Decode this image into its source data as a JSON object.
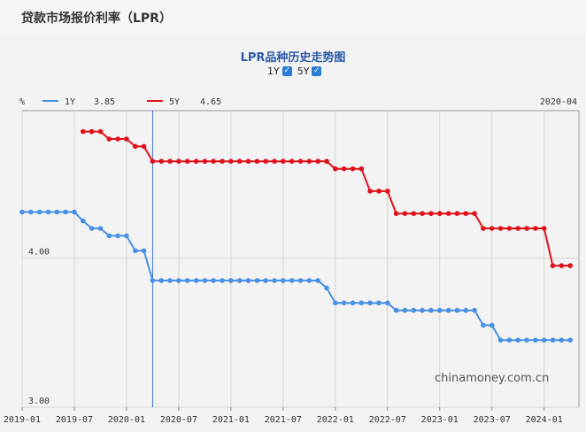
{
  "header": {
    "title": "贷款市场报价利率（LPR）"
  },
  "chart": {
    "title": "LPR品种历史走势图"
  },
  "toggles": [
    {
      "label": "1Y",
      "checked": true
    },
    {
      "label": "5Y",
      "checked": true
    }
  ],
  "check_glyph": "✓",
  "watermark": "chinamoney.com.cn",
  "chart_data": {
    "type": "line",
    "title": "LPR品种历史走势图",
    "ylabel": "%",
    "ylim": [
      3.0,
      4.99
    ],
    "xlim": [
      "2019-01",
      "2024-05"
    ],
    "y_ticks": [
      "4.00",
      "3.00"
    ],
    "x_ticks": [
      "2019-01",
      "2019-07",
      "2020-01",
      "2020-07",
      "2021-01",
      "2021-07",
      "2022-01",
      "2022-07",
      "2023-01",
      "2023-07",
      "2024-01"
    ],
    "crosshair": {
      "date": "2020-04",
      "label": "2020-04"
    },
    "grid": true,
    "legend": {
      "position": "top-left",
      "items": [
        {
          "name": "1Y",
          "value": "3.85",
          "color": "#4a90e2"
        },
        {
          "name": "5Y",
          "value": "4.65",
          "color": "#e0101a"
        }
      ]
    },
    "series": [
      {
        "name": "1Y",
        "color": "#4a90e2",
        "points": [
          [
            "2019-01",
            4.31
          ],
          [
            "2019-02",
            4.31
          ],
          [
            "2019-03",
            4.31
          ],
          [
            "2019-04",
            4.31
          ],
          [
            "2019-05",
            4.31
          ],
          [
            "2019-06",
            4.31
          ],
          [
            "2019-07",
            4.31
          ],
          [
            "2019-08",
            4.25
          ],
          [
            "2019-09",
            4.2
          ],
          [
            "2019-10",
            4.2
          ],
          [
            "2019-11",
            4.15
          ],
          [
            "2019-12",
            4.15
          ],
          [
            "2020-01",
            4.15
          ],
          [
            "2020-02",
            4.05
          ],
          [
            "2020-03",
            4.05
          ],
          [
            "2020-04",
            3.85
          ],
          [
            "2020-05",
            3.85
          ],
          [
            "2020-06",
            3.85
          ],
          [
            "2020-07",
            3.85
          ],
          [
            "2020-08",
            3.85
          ],
          [
            "2020-09",
            3.85
          ],
          [
            "2020-10",
            3.85
          ],
          [
            "2020-11",
            3.85
          ],
          [
            "2020-12",
            3.85
          ],
          [
            "2021-01",
            3.85
          ],
          [
            "2021-02",
            3.85
          ],
          [
            "2021-03",
            3.85
          ],
          [
            "2021-04",
            3.85
          ],
          [
            "2021-05",
            3.85
          ],
          [
            "2021-06",
            3.85
          ],
          [
            "2021-07",
            3.85
          ],
          [
            "2021-08",
            3.85
          ],
          [
            "2021-09",
            3.85
          ],
          [
            "2021-10",
            3.85
          ],
          [
            "2021-11",
            3.85
          ],
          [
            "2021-12",
            3.8
          ],
          [
            "2022-01",
            3.7
          ],
          [
            "2022-02",
            3.7
          ],
          [
            "2022-03",
            3.7
          ],
          [
            "2022-04",
            3.7
          ],
          [
            "2022-05",
            3.7
          ],
          [
            "2022-06",
            3.7
          ],
          [
            "2022-07",
            3.7
          ],
          [
            "2022-08",
            3.65
          ],
          [
            "2022-09",
            3.65
          ],
          [
            "2022-10",
            3.65
          ],
          [
            "2022-11",
            3.65
          ],
          [
            "2022-12",
            3.65
          ],
          [
            "2023-01",
            3.65
          ],
          [
            "2023-02",
            3.65
          ],
          [
            "2023-03",
            3.65
          ],
          [
            "2023-04",
            3.65
          ],
          [
            "2023-05",
            3.65
          ],
          [
            "2023-06",
            3.55
          ],
          [
            "2023-07",
            3.55
          ],
          [
            "2023-08",
            3.45
          ],
          [
            "2023-09",
            3.45
          ],
          [
            "2023-10",
            3.45
          ],
          [
            "2023-11",
            3.45
          ],
          [
            "2023-12",
            3.45
          ],
          [
            "2024-01",
            3.45
          ],
          [
            "2024-02",
            3.45
          ],
          [
            "2024-03",
            3.45
          ],
          [
            "2024-04",
            3.45
          ]
        ]
      },
      {
        "name": "5Y",
        "color": "#e0101a",
        "points": [
          [
            "2019-08",
            4.85
          ],
          [
            "2019-09",
            4.85
          ],
          [
            "2019-10",
            4.85
          ],
          [
            "2019-11",
            4.8
          ],
          [
            "2019-12",
            4.8
          ],
          [
            "2020-01",
            4.8
          ],
          [
            "2020-02",
            4.75
          ],
          [
            "2020-03",
            4.75
          ],
          [
            "2020-04",
            4.65
          ],
          [
            "2020-05",
            4.65
          ],
          [
            "2020-06",
            4.65
          ],
          [
            "2020-07",
            4.65
          ],
          [
            "2020-08",
            4.65
          ],
          [
            "2020-09",
            4.65
          ],
          [
            "2020-10",
            4.65
          ],
          [
            "2020-11",
            4.65
          ],
          [
            "2020-12",
            4.65
          ],
          [
            "2021-01",
            4.65
          ],
          [
            "2021-02",
            4.65
          ],
          [
            "2021-03",
            4.65
          ],
          [
            "2021-04",
            4.65
          ],
          [
            "2021-05",
            4.65
          ],
          [
            "2021-06",
            4.65
          ],
          [
            "2021-07",
            4.65
          ],
          [
            "2021-08",
            4.65
          ],
          [
            "2021-09",
            4.65
          ],
          [
            "2021-10",
            4.65
          ],
          [
            "2021-11",
            4.65
          ],
          [
            "2021-12",
            4.65
          ],
          [
            "2022-01",
            4.6
          ],
          [
            "2022-02",
            4.6
          ],
          [
            "2022-03",
            4.6
          ],
          [
            "2022-04",
            4.6
          ],
          [
            "2022-05",
            4.45
          ],
          [
            "2022-06",
            4.45
          ],
          [
            "2022-07",
            4.45
          ],
          [
            "2022-08",
            4.3
          ],
          [
            "2022-09",
            4.3
          ],
          [
            "2022-10",
            4.3
          ],
          [
            "2022-11",
            4.3
          ],
          [
            "2022-12",
            4.3
          ],
          [
            "2023-01",
            4.3
          ],
          [
            "2023-02",
            4.3
          ],
          [
            "2023-03",
            4.3
          ],
          [
            "2023-04",
            4.3
          ],
          [
            "2023-05",
            4.3
          ],
          [
            "2023-06",
            4.2
          ],
          [
            "2023-07",
            4.2
          ],
          [
            "2023-08",
            4.2
          ],
          [
            "2023-09",
            4.2
          ],
          [
            "2023-10",
            4.2
          ],
          [
            "2023-11",
            4.2
          ],
          [
            "2023-12",
            4.2
          ],
          [
            "2024-01",
            4.2
          ],
          [
            "2024-02",
            3.95
          ],
          [
            "2024-03",
            3.95
          ],
          [
            "2024-04",
            3.95
          ]
        ]
      }
    ]
  }
}
